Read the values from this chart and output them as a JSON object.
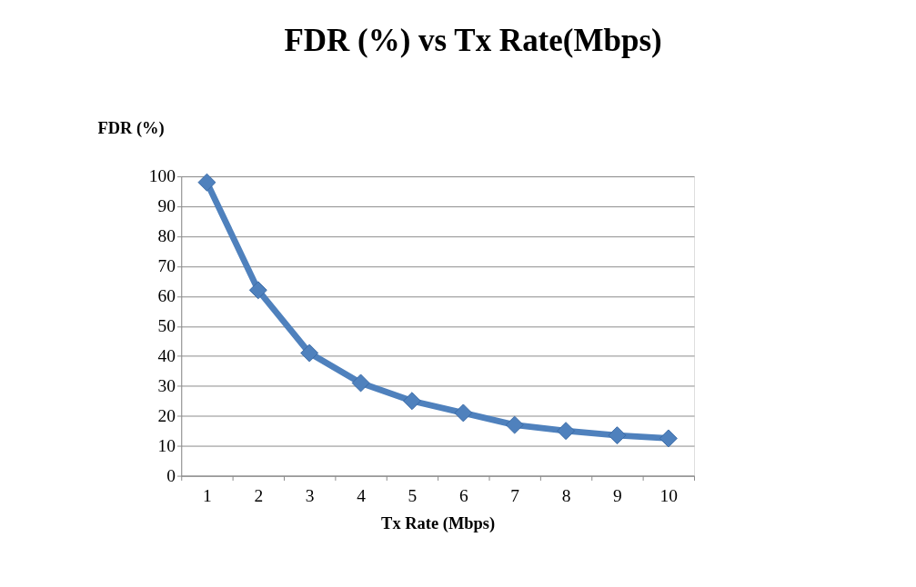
{
  "chart_data": {
    "type": "line",
    "title": "FDR (%) vs Tx Rate(Mbps)",
    "xlabel": "Tx Rate (Mbps)",
    "ylabel": "FDR (%)",
    "categories": [
      "1",
      "2",
      "3",
      "4",
      "5",
      "6",
      "7",
      "8",
      "9",
      "10"
    ],
    "series": [
      {
        "color": "#4f81bd",
        "values": [
          98,
          62,
          41,
          31,
          25,
          21,
          17,
          15,
          13.5,
          12.5
        ]
      }
    ],
    "ylim": [
      0,
      100
    ],
    "yticks": [
      0,
      10,
      20,
      30,
      40,
      50,
      60,
      70,
      80,
      90,
      100
    ],
    "grid": "y",
    "marker": "diamond",
    "line_style": "solid"
  }
}
